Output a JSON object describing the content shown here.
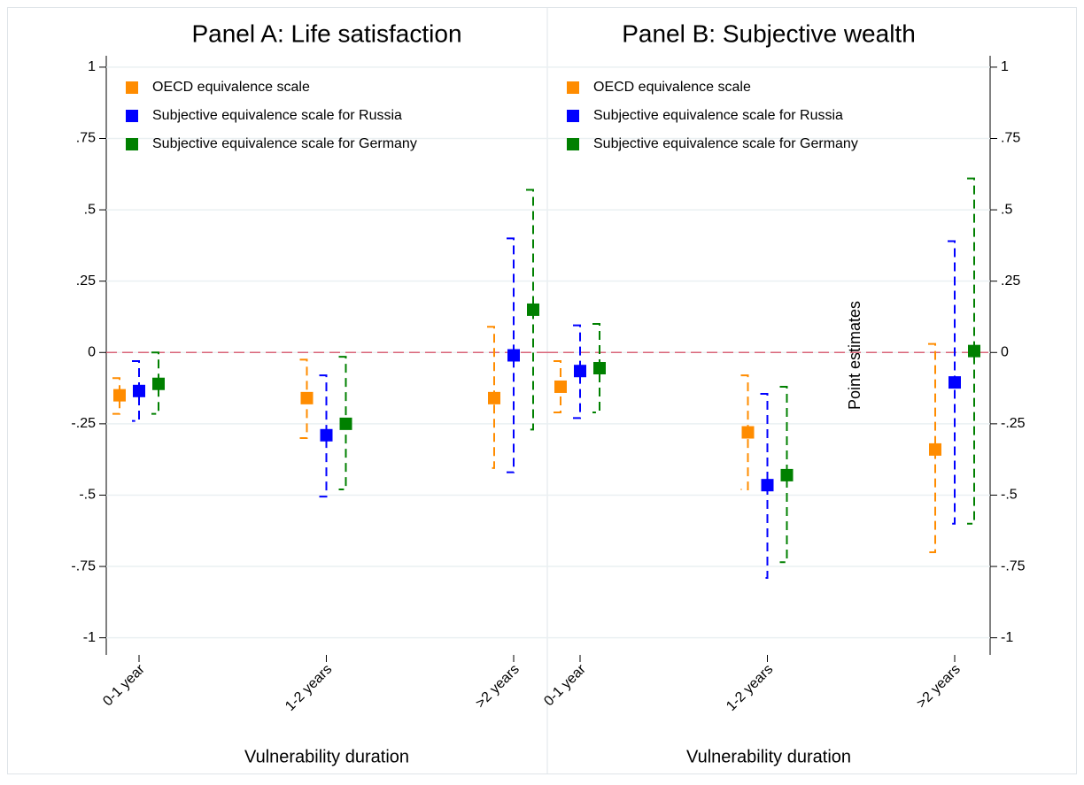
{
  "chart_data": [
    {
      "type": "errorbar",
      "title": "Panel A: Life satisfaction",
      "x_label": "Vulnerability duration",
      "categories": [
        "0-1 year",
        "1-2 years",
        ">2 years"
      ],
      "series": [
        {
          "name": "OECD equivalence scale",
          "color": "#ff8c00",
          "values": [
            -0.15,
            -0.16,
            -0.16
          ],
          "lower": [
            -0.215,
            -0.3,
            -0.405
          ],
          "upper": [
            -0.09,
            -0.025,
            0.09
          ]
        },
        {
          "name": "Subjective equivalence scale for Russia",
          "color": "#0000ff",
          "values": [
            -0.135,
            -0.29,
            -0.01
          ],
          "lower": [
            -0.24,
            -0.505,
            -0.42
          ],
          "upper": [
            -0.03,
            -0.08,
            0.4
          ]
        },
        {
          "name": "Subjective equivalence scale for Germany",
          "color": "#008000",
          "values": [
            -0.11,
            -0.25,
            0.15
          ],
          "lower": [
            -0.215,
            -0.48,
            -0.27
          ],
          "upper": [
            0,
            -0.015,
            0.57
          ]
        }
      ],
      "ylim": [
        -1.06,
        1.04
      ],
      "yticks": [
        1,
        {
          "value": 0.75,
          "label": ".75"
        },
        {
          "value": 0.5,
          "label": ".5"
        },
        {
          "value": 0.25,
          "label": ".25"
        },
        0,
        {
          "value": -0.25,
          "label": "-.25"
        },
        {
          "value": -0.5,
          "label": "-.5"
        },
        {
          "value": -0.75,
          "label": "-.75"
        },
        -1
      ],
      "y_axis_side": "left",
      "grid": true,
      "reference_line": 0,
      "reference_color": "#d9667a",
      "legend": "upper left"
    },
    {
      "type": "errorbar",
      "title": "Panel B: Subjective wealth",
      "x_label": "Vulnerability duration",
      "y_label": "Point estimates",
      "categories": [
        "0-1 year",
        "1-2 years",
        ">2 years"
      ],
      "series": [
        {
          "name": "OECD equivalence scale",
          "color": "#ff8c00",
          "values": [
            -0.12,
            -0.28,
            -0.34
          ],
          "lower": [
            -0.21,
            -0.48,
            -0.7
          ],
          "upper": [
            -0.03,
            -0.08,
            0.03
          ]
        },
        {
          "name": "Subjective equivalence scale for Russia",
          "color": "#0000ff",
          "values": [
            -0.065,
            -0.465,
            -0.105
          ],
          "lower": [
            -0.23,
            -0.79,
            -0.6
          ],
          "upper": [
            0.095,
            -0.145,
            0.39
          ]
        },
        {
          "name": "Subjective equivalence scale for Germany",
          "color": "#008000",
          "values": [
            -0.055,
            -0.43,
            0.005
          ],
          "lower": [
            -0.21,
            -0.735,
            -0.6
          ],
          "upper": [
            0.1,
            -0.12,
            0.61
          ]
        }
      ],
      "ylim": [
        -1.06,
        1.04
      ],
      "yticks": [
        1,
        {
          "value": 0.75,
          "label": ".75"
        },
        {
          "value": 0.5,
          "label": ".5"
        },
        {
          "value": 0.25,
          "label": ".25"
        },
        0,
        {
          "value": -0.25,
          "label": "-.25"
        },
        {
          "value": -0.5,
          "label": "-.5"
        },
        {
          "value": -0.75,
          "label": "-.75"
        },
        -1
      ],
      "y_axis_side": "right",
      "grid": true,
      "reference_line": 0,
      "reference_color": "#d9667a",
      "legend": "upper left"
    }
  ]
}
